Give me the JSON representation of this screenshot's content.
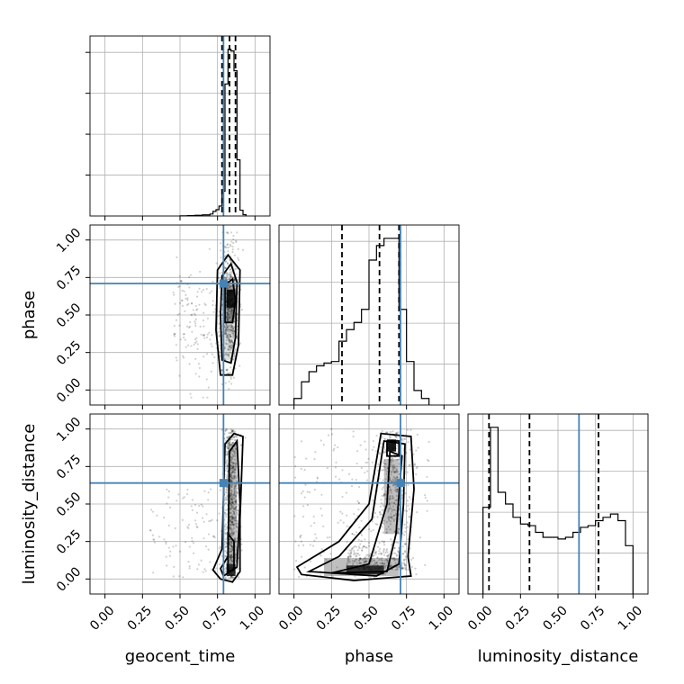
{
  "chart_data": {
    "type": "scatter",
    "title": "",
    "parameters": [
      "geocent_time",
      "phase",
      "luminosity_distance"
    ],
    "axis_labels": {
      "geocent_time": "geocent_time",
      "phase": "phase",
      "luminosity_distance": "luminosity_distance"
    },
    "ticks": [
      "0.00",
      "0.25",
      "0.50",
      "0.75",
      "1.00"
    ],
    "ranges": {
      "geocent_time": [
        -0.1,
        1.1
      ],
      "phase": [
        -0.1,
        1.1
      ],
      "luminosity_distance": [
        -0.1,
        1.1
      ]
    },
    "grid": true,
    "truths": {
      "geocent_time": 0.79,
      "phase": 0.71,
      "luminosity_distance": 0.64
    },
    "quantiles": {
      "geocent_time": [
        0.78,
        0.83,
        0.87
      ],
      "phase": [
        0.32,
        0.57,
        0.7
      ],
      "luminosity_distance": [
        0.04,
        0.31,
        0.77
      ]
    },
    "histograms": {
      "geocent_time": {
        "edges": [
          0.5,
          0.55,
          0.6,
          0.65,
          0.7,
          0.72,
          0.74,
          0.76,
          0.78,
          0.8,
          0.82,
          0.84,
          0.86,
          0.88,
          0.9,
          0.92,
          0.94
        ],
        "counts": [
          1,
          2,
          4,
          7,
          12,
          28,
          38,
          60,
          150,
          800,
          1010,
          1000,
          880,
          340,
          35,
          8
        ]
      },
      "phase": {
        "edges": [
          0.0,
          0.05,
          0.1,
          0.15,
          0.2,
          0.25,
          0.3,
          0.35,
          0.4,
          0.45,
          0.5,
          0.55,
          0.6,
          0.65,
          0.7,
          0.75,
          0.8,
          0.85,
          0.9
        ],
        "counts": [
          45,
          160,
          230,
          270,
          290,
          300,
          440,
          520,
          570,
          660,
          1000,
          1100,
          1150,
          1150,
          660,
          300,
          100,
          45
        ]
      },
      "luminosity_distance": {
        "edges": [
          0.0,
          0.05,
          0.1,
          0.15,
          0.2,
          0.25,
          0.3,
          0.35,
          0.4,
          0.45,
          0.5,
          0.55,
          0.6,
          0.65,
          0.7,
          0.75,
          0.8,
          0.85,
          0.9,
          0.95,
          1.0
        ],
        "counts": [
          520,
          1000,
          610,
          540,
          460,
          420,
          410,
          370,
          340,
          340,
          330,
          340,
          370,
          400,
          410,
          440,
          460,
          480,
          440,
          290
        ]
      }
    }
  }
}
